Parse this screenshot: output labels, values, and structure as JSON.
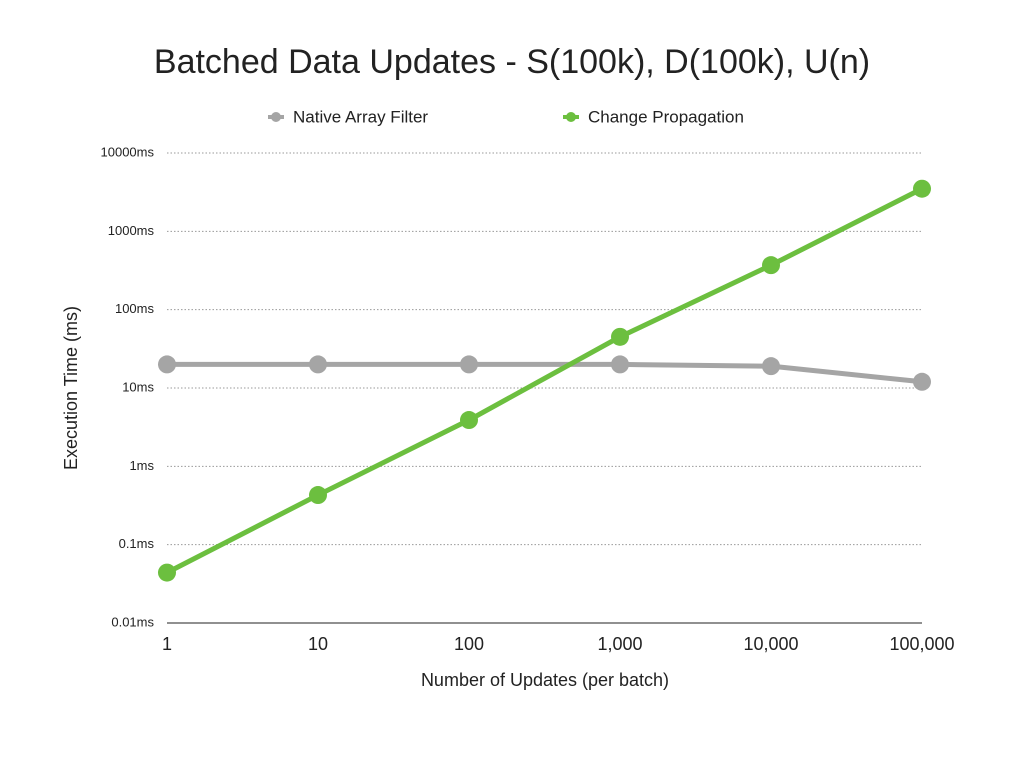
{
  "chart_data": {
    "type": "line",
    "title": "Batched Data Updates - S(100k), D(100k), U(n)",
    "xlabel": "Number of Updates (per batch)",
    "ylabel": "Execution Time (ms)",
    "x": [
      1,
      10,
      100,
      1000,
      10000,
      100000
    ],
    "xscale": "log",
    "xlim": [
      1,
      100000
    ],
    "xticks": [
      1,
      10,
      100,
      {
        "value": 1000,
        "label": "1,000"
      },
      {
        "value": 10000,
        "label": "10,000"
      },
      {
        "value": 100000,
        "label": "100,000"
      }
    ],
    "yscale": "log",
    "ylim": [
      0.01,
      10000
    ],
    "yticks": [
      {
        "value": 0.01,
        "label": "0.01ms"
      },
      {
        "value": 0.1,
        "label": "0.1ms"
      },
      {
        "value": 1,
        "label": "1ms"
      },
      {
        "value": 10,
        "label": "10ms"
      },
      {
        "value": 100,
        "label": "100ms"
      },
      {
        "value": 1000,
        "label": "1000ms"
      },
      {
        "value": 10000,
        "label": "10000ms"
      }
    ],
    "grid": true,
    "legend": "top",
    "series": [
      {
        "name": "Native Array Filter",
        "color": "#a5a5a5",
        "values": [
          20,
          20,
          20,
          20,
          19,
          12
        ]
      },
      {
        "name": "Change Propagation",
        "color": "#6cbf3f",
        "values": [
          0.044,
          0.43,
          3.9,
          45,
          370,
          3500
        ]
      }
    ]
  }
}
